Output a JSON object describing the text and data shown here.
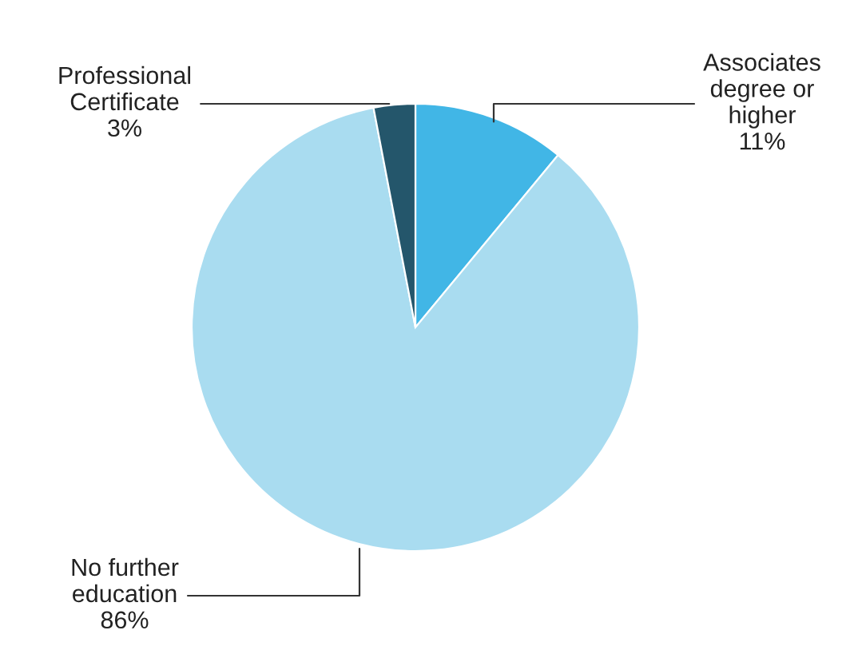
{
  "chart_data": {
    "type": "pie",
    "categories": [
      "Associates\ndegree or\nhigher",
      "No further\neducation",
      "Professional\nCertificate"
    ],
    "values": [
      11,
      86,
      3
    ],
    "value_labels": [
      "11%",
      "86%",
      "3%"
    ],
    "colors": [
      "#41b6e6",
      "#a9dcf0",
      "#24566b"
    ],
    "legend": false
  }
}
